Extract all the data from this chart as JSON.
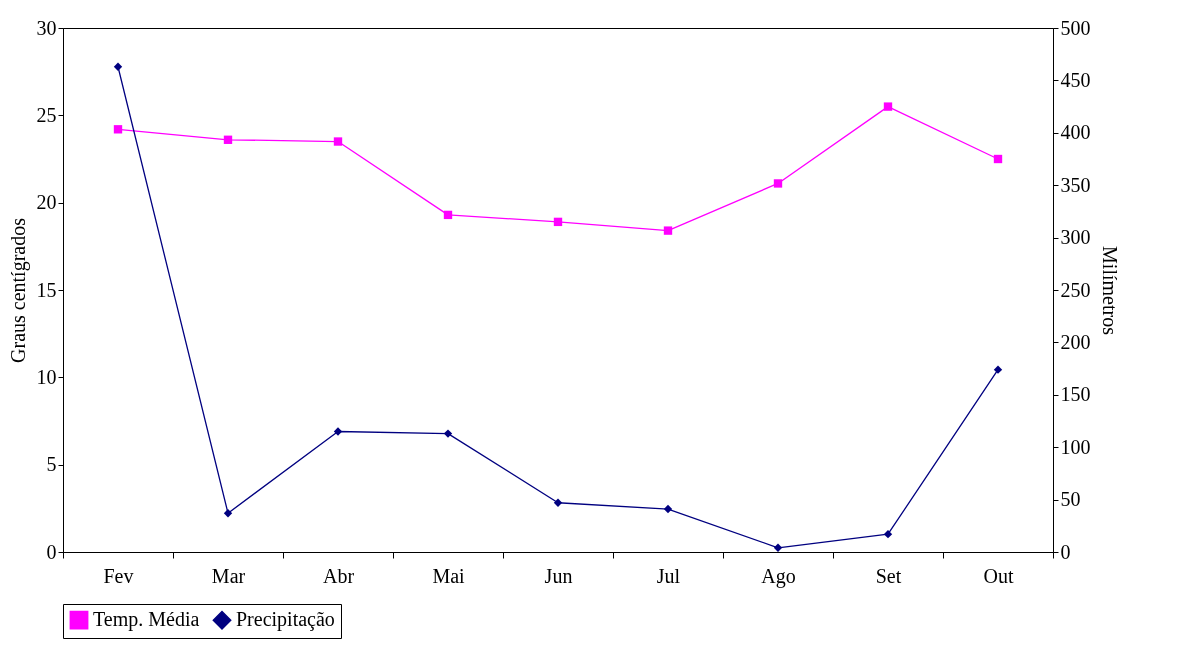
{
  "chart_data": {
    "type": "line",
    "ylabel": "Graus centígrados",
    "y2label": "Milímetros",
    "categories": [
      "Fev",
      "Mar",
      "Abr",
      "Mai",
      "Jun",
      "Jul",
      "Ago",
      "Set",
      "Out"
    ],
    "series": [
      {
        "name": "Temp. Média",
        "color": "#ff00ff",
        "marker": "square",
        "values": [
          24.2,
          23.6,
          23.5,
          19.3,
          18.9,
          18.4,
          21.1,
          25.5,
          22.5
        ]
      },
      {
        "name": "Precipitação",
        "color": "#000080",
        "marker": "diamond",
        "axis": "y2",
        "values": [
          463,
          37,
          115,
          113,
          47,
          41,
          4,
          17,
          174
        ]
      }
    ],
    "ylim": [
      0,
      30
    ],
    "yticks": [
      0,
      5,
      10,
      15,
      20,
      25,
      30
    ],
    "y2lim": [
      0,
      500
    ],
    "y2ticks": [
      0,
      50,
      100,
      150,
      200,
      250,
      300,
      350,
      400,
      450,
      500
    ],
    "grid": false,
    "legend": "bottom",
    "line_style": "solid"
  }
}
